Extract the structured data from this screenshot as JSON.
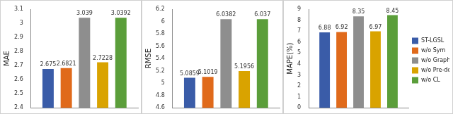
{
  "chart_data": [
    {
      "type": "bar",
      "ylabel": "MAE",
      "categories": [
        null
      ],
      "series": [
        {
          "name": "ST-LGSL",
          "color": "#3a5ca8",
          "values": [
            2.675
          ]
        },
        {
          "name": "w/o Sym",
          "color": "#e06a1b",
          "values": [
            2.6821
          ]
        },
        {
          "name": "w/o Graph-generator",
          "color": "#8e8e8e",
          "values": [
            3.039
          ]
        },
        {
          "name": "w/o Pre-defined",
          "color": "#d9a300",
          "values": [
            2.7228
          ]
        },
        {
          "name": "w/o CL",
          "color": "#5b9e3a",
          "values": [
            3.0392
          ]
        }
      ],
      "ylim": [
        2.4,
        3.1
      ],
      "yticks": [
        2.4,
        2.5,
        2.6,
        2.7,
        2.8,
        2.9,
        3,
        3.1
      ],
      "grid": false,
      "data_labels": true,
      "tick_labels": "y"
    },
    {
      "type": "bar",
      "ylabel": "RMSE",
      "categories": [
        null
      ],
      "series": [
        {
          "name": "ST-LGSL",
          "color": "#3a5ca8",
          "values": [
            5.0859
          ]
        },
        {
          "name": "w/o Sym",
          "color": "#e06a1b",
          "values": [
            5.1019
          ]
        },
        {
          "name": "w/o Graph-generator",
          "color": "#8e8e8e",
          "values": [
            6.0382
          ]
        },
        {
          "name": "w/o Pre-defined",
          "color": "#d9a300",
          "values": [
            5.1956
          ]
        },
        {
          "name": "w/o CL",
          "color": "#5b9e3a",
          "values": [
            6.037
          ]
        }
      ],
      "ylim": [
        4.6,
        6.2
      ],
      "yticks": [
        4.6,
        4.8,
        5,
        5.2,
        5.4,
        5.6,
        5.8,
        6,
        6.2
      ],
      "grid": false,
      "data_labels": true,
      "tick_labels": "y"
    },
    {
      "type": "bar",
      "ylabel": "MAPE(%)",
      "categories": [
        null
      ],
      "series": [
        {
          "name": "ST-LGSL",
          "color": "#3a5ca8",
          "values": [
            6.88
          ]
        },
        {
          "name": "w/o Sym",
          "color": "#e06a1b",
          "values": [
            6.92
          ]
        },
        {
          "name": "w/o Graph-generator",
          "color": "#8e8e8e",
          "values": [
            8.35
          ]
        },
        {
          "name": "w/o Pre-defined",
          "color": "#d9a300",
          "values": [
            6.97
          ]
        },
        {
          "name": "w/o CL",
          "color": "#5b9e3a",
          "values": [
            8.45
          ]
        }
      ],
      "ylim": [
        0,
        9
      ],
      "yticks": [
        0,
        1,
        2,
        3,
        4,
        5,
        6,
        7,
        8,
        9
      ],
      "grid": false,
      "data_labels": true,
      "tick_labels": "y",
      "legend": "right"
    }
  ]
}
